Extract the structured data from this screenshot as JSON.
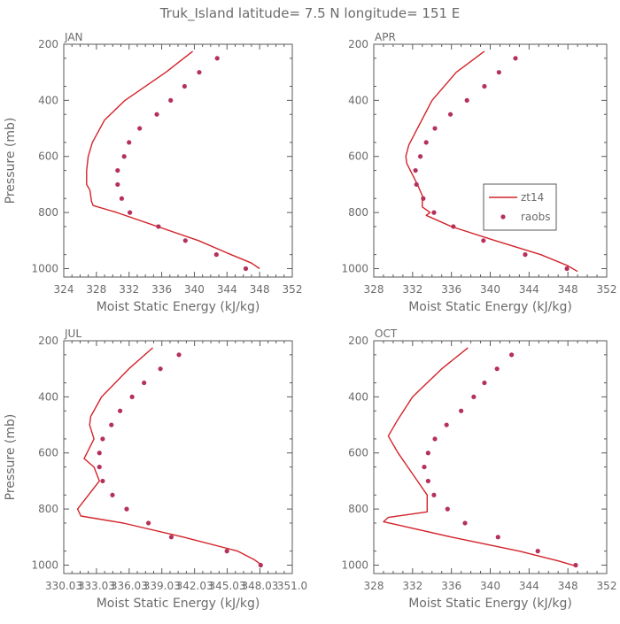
{
  "figure": {
    "title": "Truk_Island  latitude= 7.5 N longitude= 151 E",
    "line_color": "#d2232a",
    "point_color": "#b5305a"
  },
  "chart_data": [
    {
      "type": "line",
      "panel_label": "JAN",
      "xlabel": "Moist Static Energy (kJ/kg)",
      "ylabel": "Pressure (mb)",
      "xlim": [
        324,
        352
      ],
      "xticks": [
        324,
        328,
        332,
        336,
        340,
        344,
        348,
        352
      ],
      "xtick_labels": [
        "324",
        "328",
        "332",
        "336",
        "340",
        "344",
        "348",
        "352"
      ],
      "ylim": [
        200,
        1030
      ],
      "yticks": [
        200,
        400,
        600,
        800,
        1000
      ],
      "y_inverted": true,
      "legend": null,
      "series": [
        {
          "name": "zt14",
          "type": "line",
          "y": [
            225,
            300,
            400,
            470,
            550,
            600,
            650,
            700,
            720,
            760,
            775,
            800,
            850,
            900,
            950,
            980,
            1000
          ],
          "x": [
            339.8,
            336.5,
            331.5,
            329.0,
            327.5,
            327.0,
            326.8,
            326.8,
            327.2,
            327.4,
            327.6,
            330.5,
            335.5,
            340.5,
            344.5,
            347.0,
            348.0
          ]
        },
        {
          "name": "raobs",
          "type": "scatter",
          "y": [
            250,
            300,
            350,
            400,
            450,
            500,
            550,
            600,
            650,
            700,
            750,
            800,
            850,
            900,
            950,
            1000
          ],
          "x": [
            342.8,
            340.6,
            338.8,
            337.1,
            335.4,
            333.3,
            332.0,
            331.4,
            330.6,
            330.6,
            331.1,
            332.1,
            335.6,
            338.9,
            342.7,
            346.3
          ]
        }
      ]
    },
    {
      "type": "line",
      "panel_label": "APR",
      "xlabel": "Moist Static Energy (kJ/kg)",
      "ylabel": "",
      "xlim": [
        328,
        352
      ],
      "xticks": [
        328,
        332,
        336,
        340,
        344,
        348,
        352
      ],
      "xtick_labels": [
        "328",
        "332",
        "336",
        "340",
        "344",
        "348",
        "352"
      ],
      "ylim": [
        200,
        1030
      ],
      "yticks": [
        200,
        400,
        600,
        800,
        1000
      ],
      "y_inverted": true,
      "legend": {
        "position": "right",
        "entries": [
          "zt14",
          "raobs"
        ]
      },
      "series": [
        {
          "name": "zt14",
          "type": "line",
          "y": [
            225,
            300,
            400,
            500,
            560,
            600,
            625,
            700,
            740,
            780,
            800,
            810,
            850,
            900,
            950,
            990,
            1010
          ],
          "x": [
            339.4,
            336.5,
            334.0,
            332.5,
            331.6,
            331.3,
            331.4,
            332.5,
            333.0,
            333.0,
            333.8,
            333.4,
            336.0,
            340.5,
            345.2,
            348.0,
            349.0
          ]
        },
        {
          "name": "raobs",
          "type": "scatter",
          "y": [
            250,
            300,
            350,
            400,
            450,
            500,
            550,
            600,
            650,
            700,
            750,
            800,
            850,
            900,
            950,
            1000
          ],
          "x": [
            342.6,
            340.9,
            339.4,
            337.6,
            335.9,
            334.3,
            333.4,
            332.8,
            332.3,
            332.4,
            333.1,
            334.2,
            336.2,
            339.3,
            343.6,
            347.9
          ]
        }
      ]
    },
    {
      "type": "line",
      "panel_label": "JUL",
      "xlabel": "Moist Static Energy (kJ/kg)",
      "ylabel": "Pressure (mb)",
      "xlim": [
        330.03,
        351.0
      ],
      "xticks": [
        330.03,
        333.03,
        336.03,
        339.03,
        342.03,
        345.03,
        348.03,
        351.0
      ],
      "xtick_labels": [
        "330.03",
        "333.03",
        "336.03",
        "339.03",
        "342.03",
        "345.03",
        "348.03",
        "351.0"
      ],
      "ylim": [
        200,
        1030
      ],
      "yticks": [
        200,
        400,
        600,
        800,
        1000
      ],
      "y_inverted": true,
      "legend": null,
      "series": [
        {
          "name": "zt14",
          "type": "line",
          "y": [
            225,
            300,
            400,
            470,
            500,
            550,
            620,
            650,
            700,
            800,
            825,
            850,
            900,
            950,
            980,
            1000
          ],
          "x": [
            338.2,
            336.0,
            333.5,
            332.5,
            332.4,
            332.8,
            331.9,
            332.8,
            333.3,
            331.3,
            331.6,
            335.5,
            341.0,
            346.0,
            347.5,
            348.2
          ]
        },
        {
          "name": "raobs",
          "type": "scatter",
          "y": [
            250,
            300,
            350,
            400,
            450,
            500,
            550,
            600,
            650,
            700,
            750,
            800,
            850,
            900,
            950,
            1000
          ],
          "x": [
            340.6,
            338.9,
            337.4,
            336.3,
            335.2,
            334.4,
            333.6,
            333.3,
            333.3,
            333.6,
            334.5,
            335.8,
            337.8,
            339.9,
            345.0,
            348.1
          ]
        }
      ]
    },
    {
      "type": "line",
      "panel_label": "OCT",
      "xlabel": "Moist Static Energy (kJ/kg)",
      "ylabel": "",
      "xlim": [
        328,
        352
      ],
      "xticks": [
        328,
        332,
        336,
        340,
        344,
        348,
        352
      ],
      "xtick_labels": [
        "328",
        "332",
        "336",
        "340",
        "344",
        "348",
        "352"
      ],
      "ylim": [
        200,
        1030
      ],
      "yticks": [
        200,
        400,
        600,
        800,
        1000
      ],
      "y_inverted": true,
      "legend": null,
      "series": [
        {
          "name": "zt14",
          "type": "line",
          "y": [
            225,
            300,
            400,
            480,
            540,
            600,
            650,
            700,
            750,
            810,
            830,
            845,
            900,
            950,
            985,
            1005
          ],
          "x": [
            337.7,
            335.0,
            332.0,
            330.5,
            329.5,
            330.5,
            331.5,
            332.5,
            333.5,
            333.5,
            329.5,
            329.0,
            336.0,
            343.0,
            347.0,
            349.0
          ]
        },
        {
          "name": "raobs",
          "type": "scatter",
          "y": [
            250,
            300,
            350,
            400,
            450,
            500,
            550,
            600,
            650,
            700,
            750,
            800,
            850,
            900,
            950,
            1000
          ],
          "x": [
            342.2,
            340.7,
            339.4,
            338.3,
            337.0,
            335.5,
            334.3,
            333.6,
            333.2,
            333.6,
            334.2,
            335.6,
            337.4,
            340.8,
            344.9,
            348.8
          ]
        }
      ]
    }
  ]
}
